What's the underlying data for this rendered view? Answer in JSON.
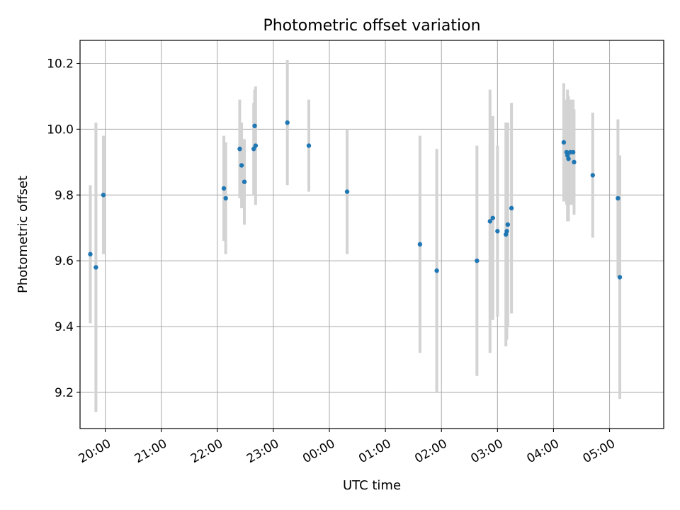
{
  "chart_data": {
    "type": "scatter",
    "title": "Photometric offset variation",
    "xlabel": "UTC time",
    "ylabel": "Photometric offset",
    "x_axis_type": "time",
    "xlim": [
      "19:33",
      "05:58"
    ],
    "ylim": [
      9.09,
      10.27
    ],
    "grid": true,
    "x_ticks": [
      "20:00",
      "21:00",
      "22:00",
      "23:00",
      "00:00",
      "01:00",
      "02:00",
      "03:00",
      "04:00",
      "05:00"
    ],
    "y_ticks": [
      "9.2",
      "9.4",
      "9.6",
      "9.8",
      "10.0",
      "10.2"
    ],
    "point_color": "#1f77b4",
    "errorbar_color": "#d3d3d3",
    "points": [
      {
        "t": "19:44",
        "y": 9.62,
        "yerr": 0.21
      },
      {
        "t": "19:50",
        "y": 9.58,
        "yerr": 0.44
      },
      {
        "t": "19:58",
        "y": 9.8,
        "yerr": 0.18
      },
      {
        "t": "22:07",
        "y": 9.82,
        "yerr": 0.16
      },
      {
        "t": "22:09",
        "y": 9.79,
        "yerr": 0.17
      },
      {
        "t": "22:24",
        "y": 9.94,
        "yerr": 0.15
      },
      {
        "t": "22:26",
        "y": 9.89,
        "yerr": 0.13
      },
      {
        "t": "22:29",
        "y": 9.84,
        "yerr": 0.13
      },
      {
        "t": "22:39",
        "y": 9.94,
        "yerr": 0.14
      },
      {
        "t": "22:40",
        "y": 10.01,
        "yerr": 0.11
      },
      {
        "t": "22:41",
        "y": 9.95,
        "yerr": 0.18
      },
      {
        "t": "23:15",
        "y": 10.02,
        "yerr": 0.19
      },
      {
        "t": "23:38",
        "y": 9.95,
        "yerr": 0.14
      },
      {
        "t": "00:19",
        "y": 9.81,
        "yerr": 0.19
      },
      {
        "t": "01:37",
        "y": 9.65,
        "yerr": 0.33
      },
      {
        "t": "01:55",
        "y": 9.57,
        "yerr": 0.37
      },
      {
        "t": "02:38",
        "y": 9.6,
        "yerr": 0.35
      },
      {
        "t": "02:52",
        "y": 9.72,
        "yerr": 0.4
      },
      {
        "t": "02:55",
        "y": 9.73,
        "yerr": 0.31
      },
      {
        "t": "03:00",
        "y": 9.69,
        "yerr": 0.26
      },
      {
        "t": "03:09",
        "y": 9.68,
        "yerr": 0.34
      },
      {
        "t": "03:10",
        "y": 9.69,
        "yerr": 0.33
      },
      {
        "t": "03:11",
        "y": 9.71,
        "yerr": 0.31
      },
      {
        "t": "03:15",
        "y": 9.76,
        "yerr": 0.32
      },
      {
        "t": "04:11",
        "y": 9.96,
        "yerr": 0.18
      },
      {
        "t": "04:14",
        "y": 9.93,
        "yerr": 0.16
      },
      {
        "t": "04:15",
        "y": 9.92,
        "yerr": 0.2
      },
      {
        "t": "04:16",
        "y": 9.91,
        "yerr": 0.19
      },
      {
        "t": "04:18",
        "y": 9.93,
        "yerr": 0.16
      },
      {
        "t": "04:21",
        "y": 9.93,
        "yerr": 0.16
      },
      {
        "t": "04:22",
        "y": 9.9,
        "yerr": 0.16
      },
      {
        "t": "04:42",
        "y": 9.86,
        "yerr": 0.19
      },
      {
        "t": "05:09",
        "y": 9.79,
        "yerr": 0.24
      },
      {
        "t": "05:11",
        "y": 9.55,
        "yerr": 0.37
      }
    ]
  }
}
